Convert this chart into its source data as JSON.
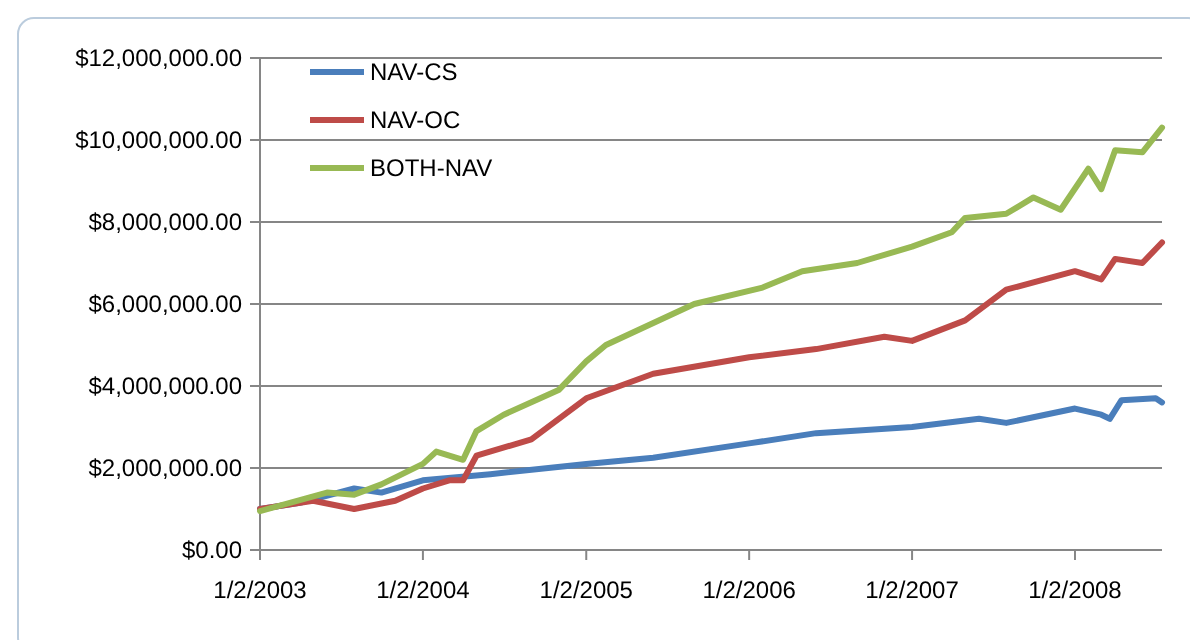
{
  "chart_data": {
    "type": "line",
    "xlim": [
      "2003-01-02",
      "2008-07-15"
    ],
    "xticks": [
      {
        "value": "2003-01-02",
        "label": "1/2/2003"
      },
      {
        "value": "2004-01-02",
        "label": "1/2/2004"
      },
      {
        "value": "2005-01-02",
        "label": "1/2/2005"
      },
      {
        "value": "2006-01-02",
        "label": "1/2/2006"
      },
      {
        "value": "2007-01-02",
        "label": "1/2/2007"
      },
      {
        "value": "2008-01-02",
        "label": "1/2/2008"
      }
    ],
    "ylim": [
      0,
      12000000
    ],
    "yticks": [
      {
        "value": 0,
        "label": "$0.00"
      },
      {
        "value": 2000000,
        "label": "$2,000,000.00"
      },
      {
        "value": 4000000,
        "label": "$4,000,000.00"
      },
      {
        "value": 6000000,
        "label": "$6,000,000.00"
      },
      {
        "value": 8000000,
        "label": "$8,000,000.00"
      },
      {
        "value": 10000000,
        "label": "$10,000,000.00"
      },
      {
        "value": 12000000,
        "label": "$12,000,000.00"
      }
    ],
    "grid": "y",
    "legend": "top left",
    "marker": "none",
    "line_style": "solid",
    "series": [
      {
        "name": "NAV-CS",
        "color": "#4a7ebb",
        "x": [
          "2003-01-02",
          "2003-04-01",
          "2003-08-01",
          "2003-10-01",
          "2004-01-02",
          "2004-06-01",
          "2005-01-02",
          "2005-06-01",
          "2006-01-02",
          "2006-06-01",
          "2007-01-02",
          "2007-06-01",
          "2007-08-01",
          "2008-01-02",
          "2008-03-01",
          "2008-03-20",
          "2008-04-15",
          "2008-07-01",
          "2008-07-15"
        ],
        "values": [
          1000000,
          1150000,
          1500000,
          1400000,
          1700000,
          1850000,
          2100000,
          2250000,
          2600000,
          2850000,
          3000000,
          3200000,
          3100000,
          3450000,
          3300000,
          3200000,
          3650000,
          3700000,
          3600000
        ]
      },
      {
        "name": "NAV-OC",
        "color": "#be4b48",
        "x": [
          "2003-01-02",
          "2003-05-01",
          "2003-08-01",
          "2003-11-01",
          "2004-01-02",
          "2004-03-01",
          "2004-04-01",
          "2004-05-01",
          "2004-09-01",
          "2005-01-02",
          "2005-06-01",
          "2006-01-02",
          "2006-06-01",
          "2006-11-01",
          "2007-01-02",
          "2007-05-01",
          "2007-08-01",
          "2008-01-02",
          "2008-03-01",
          "2008-04-01",
          "2008-06-01",
          "2008-07-15"
        ],
        "values": [
          1000000,
          1200000,
          1000000,
          1200000,
          1500000,
          1700000,
          1700000,
          2300000,
          2700000,
          3700000,
          4300000,
          4700000,
          4900000,
          5200000,
          5100000,
          5600000,
          6350000,
          6800000,
          6600000,
          7100000,
          7000000,
          7500000
        ]
      },
      {
        "name": "BOTH-NAV",
        "color": "#98b954",
        "x": [
          "2003-01-02",
          "2003-06-01",
          "2003-08-01",
          "2003-10-01",
          "2004-01-02",
          "2004-02-01",
          "2004-04-01",
          "2004-05-01",
          "2004-07-01",
          "2004-11-01",
          "2005-01-02",
          "2005-02-15",
          "2005-09-01",
          "2006-02-01",
          "2006-05-01",
          "2006-09-01",
          "2007-01-02",
          "2007-04-01",
          "2007-05-01",
          "2007-08-01",
          "2007-10-01",
          "2007-12-01",
          "2008-02-01",
          "2008-03-01",
          "2008-04-01",
          "2008-06-01",
          "2008-07-15"
        ],
        "values": [
          950000,
          1400000,
          1350000,
          1600000,
          2100000,
          2400000,
          2200000,
          2900000,
          3300000,
          3900000,
          4600000,
          5000000,
          6000000,
          6400000,
          6800000,
          7000000,
          7400000,
          7750000,
          8100000,
          8200000,
          8600000,
          8300000,
          9300000,
          8800000,
          9750000,
          9700000,
          10300000
        ]
      }
    ]
  }
}
